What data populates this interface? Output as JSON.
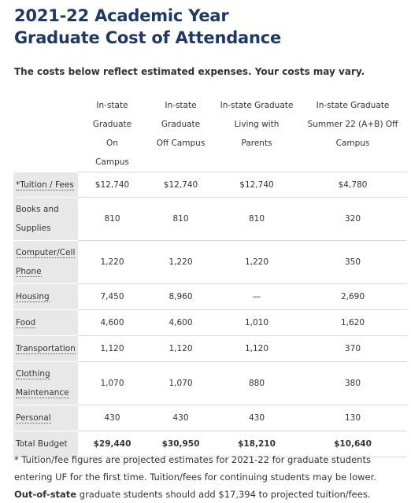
{
  "title": {
    "line1": "2021-22 Academic Year",
    "line2": "Graduate Cost of Attendance"
  },
  "subtitle": "The costs below reflect estimated expenses.  Your costs may vary.",
  "table": {
    "headers": [
      "",
      "In-state Graduate On Campus",
      "In-state Graduate Off Campus",
      "In-state Graduate Living with Parents",
      "In-state Graduate Summer 22 (A+B) Off Campus"
    ],
    "rows": [
      {
        "label": "*Tuition / Fees",
        "values": [
          "$12,740",
          "$12,740",
          "$12,740",
          "$4,780"
        ]
      },
      {
        "label": "Books and Supplies",
        "values": [
          "810",
          "810",
          "810",
          "320"
        ]
      },
      {
        "label": "Computer/Cell Phone",
        "values": [
          "1,220",
          "1,220",
          "1,220",
          "350"
        ]
      },
      {
        "label": "Housing",
        "values": [
          "7,450",
          "8,960",
          "—",
          "2,690"
        ]
      },
      {
        "label": "Food",
        "values": [
          "4,600",
          "4,600",
          "1,010",
          "1,620"
        ]
      },
      {
        "label": "Transportation",
        "values": [
          "1,120",
          "1,120",
          "1,120",
          "370"
        ]
      },
      {
        "label": "Clothing Maintenance",
        "values": [
          "1,070",
          "1,070",
          "880",
          "380"
        ]
      },
      {
        "label": "Personal",
        "values": [
          "430",
          "430",
          "430",
          "130"
        ]
      },
      {
        "label": "Total Budget",
        "values": [
          "$29,440",
          "$30,950",
          "$18,210",
          "$10,640"
        ]
      }
    ]
  },
  "footnote": {
    "line1": "* Tuition/fee figures are projected estimates for 2021-22 for graduate students",
    "line2": "entering UF for the first time. Tuition/fees for continuing students may be lower.",
    "line3_bold": "Out-of-state",
    "line3_rest": " graduate students should add $17,394 to projected tuition/fees."
  }
}
